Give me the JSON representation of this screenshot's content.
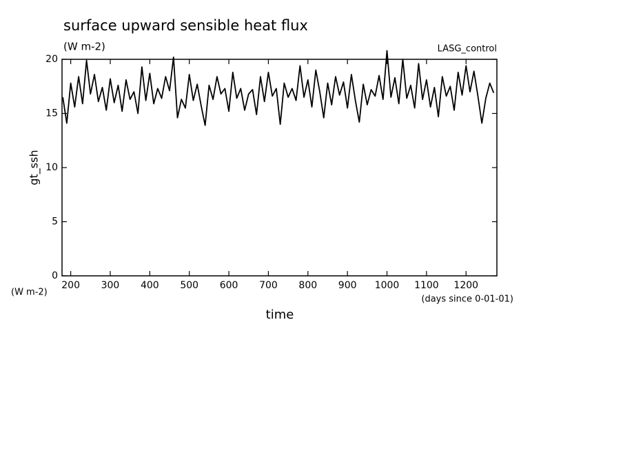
{
  "chart_data": {
    "type": "line",
    "title": "surface upward sensible heat flux",
    "subtitle": "(W m-2)",
    "annotation": "LASG_control",
    "y_label": "gt_ssh",
    "y_units": "(W m-2)",
    "x_label": "time",
    "x_units": "(days since 0-01-01)",
    "xlim": [
      178,
      1278
    ],
    "ylim": [
      0,
      20
    ],
    "xticks": [
      200,
      300,
      400,
      500,
      600,
      700,
      800,
      900,
      1000,
      1100,
      1200
    ],
    "yticks": [
      0,
      5,
      10,
      15,
      20
    ],
    "x": [
      180,
      190,
      200,
      210,
      220,
      230,
      240,
      250,
      260,
      270,
      280,
      290,
      300,
      310,
      320,
      330,
      340,
      350,
      360,
      370,
      380,
      390,
      400,
      410,
      420,
      430,
      440,
      450,
      460,
      470,
      480,
      490,
      500,
      510,
      520,
      530,
      540,
      550,
      560,
      570,
      580,
      590,
      600,
      610,
      620,
      630,
      640,
      650,
      660,
      670,
      680,
      690,
      700,
      710,
      720,
      730,
      740,
      750,
      760,
      770,
      780,
      790,
      800,
      810,
      820,
      830,
      840,
      850,
      860,
      870,
      880,
      890,
      900,
      910,
      920,
      930,
      940,
      950,
      960,
      970,
      980,
      990,
      1000,
      1010,
      1020,
      1030,
      1040,
      1050,
      1060,
      1070,
      1080,
      1090,
      1100,
      1110,
      1120,
      1130,
      1140,
      1150,
      1160,
      1170,
      1180,
      1190,
      1200,
      1210,
      1220,
      1230,
      1240,
      1250,
      1260,
      1270
    ],
    "series": [
      {
        "name": "gt_ssh",
        "color": "#000000",
        "values": [
          16.5,
          14.1,
          17.8,
          15.6,
          18.4,
          15.9,
          19.9,
          16.8,
          18.6,
          16.1,
          17.4,
          15.3,
          18.2,
          16.0,
          17.6,
          15.2,
          18.1,
          16.3,
          17.0,
          15.0,
          19.3,
          16.2,
          18.7,
          15.9,
          17.3,
          16.4,
          18.4,
          17.1,
          20.2,
          14.6,
          16.3,
          15.5,
          18.6,
          16.2,
          17.7,
          15.7,
          13.9,
          17.6,
          16.3,
          18.4,
          16.8,
          17.3,
          15.2,
          18.8,
          16.4,
          17.3,
          15.3,
          16.8,
          17.2,
          14.9,
          18.4,
          16.1,
          18.8,
          16.6,
          17.3,
          14.0,
          17.8,
          16.5,
          17.3,
          16.2,
          19.4,
          16.5,
          18.1,
          15.6,
          19.0,
          17.0,
          14.6,
          17.8,
          15.8,
          18.4,
          16.7,
          17.9,
          15.5,
          18.6,
          16.2,
          14.2,
          17.7,
          15.8,
          17.2,
          16.6,
          18.5,
          16.3,
          20.8,
          16.5,
          18.3,
          15.9,
          20.0,
          16.4,
          17.6,
          15.5,
          19.6,
          16.3,
          18.1,
          15.6,
          17.4,
          14.7,
          18.4,
          16.6,
          17.5,
          15.3,
          18.8,
          16.7,
          19.4,
          17.0,
          18.9,
          16.6,
          14.1,
          16.4,
          17.8,
          16.9
        ]
      }
    ]
  }
}
